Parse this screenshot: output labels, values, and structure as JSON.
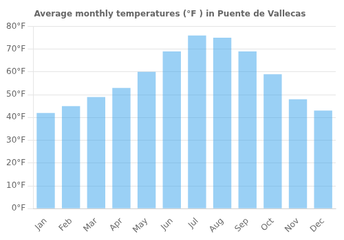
{
  "chart_data": {
    "type": "bar",
    "title": "Average monthly temperatures (°F ) in Puente de Vallecas",
    "categories": [
      "Jan",
      "Feb",
      "Mar",
      "Apr",
      "May",
      "Jun",
      "Jul",
      "Aug",
      "Sep",
      "Oct",
      "Nov",
      "Dec"
    ],
    "values": [
      42,
      45,
      49,
      53,
      60,
      69,
      76,
      75,
      69,
      59,
      48,
      43
    ],
    "ylim": [
      0,
      80
    ],
    "yticks": [
      {
        "value": 0,
        "label": "0°F"
      },
      {
        "value": 10,
        "label": "10°F"
      },
      {
        "value": 20,
        "label": "20°F"
      },
      {
        "value": 30,
        "label": "30°F"
      },
      {
        "value": 40,
        "label": "40°F"
      },
      {
        "value": 50,
        "label": "50°F"
      },
      {
        "value": 60,
        "label": "60°F"
      },
      {
        "value": 70,
        "label": "70°F"
      },
      {
        "value": 80,
        "label": "80°F"
      }
    ],
    "grid": true
  }
}
